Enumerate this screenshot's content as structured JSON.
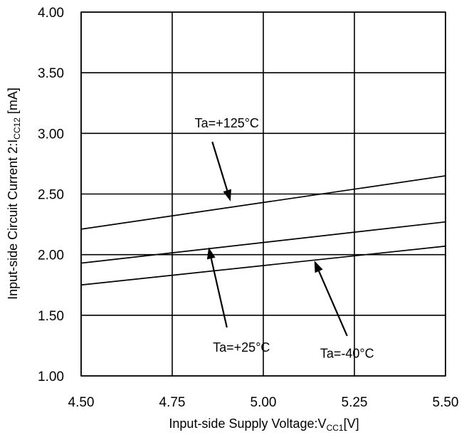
{
  "chart_data": {
    "type": "line",
    "title": "",
    "xlabel": {
      "main": "Input-side Supply Voltage:V",
      "sub": "CC1",
      "unit": "[V]"
    },
    "ylabel": {
      "main": "Input-side Circuit Current 2:I",
      "sub": "CC12",
      "unit": " [mA]"
    },
    "xlim": [
      4.5,
      5.5
    ],
    "ylim": [
      1.0,
      4.0
    ],
    "x_ticks": [
      4.5,
      4.75,
      5.0,
      5.25,
      5.5
    ],
    "x_tick_labels": [
      "4.50",
      "4.75",
      "5.00",
      "5.25",
      "5.50"
    ],
    "y_ticks": [
      1.0,
      1.5,
      2.0,
      2.5,
      3.0,
      3.5,
      4.0
    ],
    "y_tick_labels": [
      "1.00",
      "1.50",
      "2.00",
      "2.50",
      "3.00",
      "3.50",
      "4.00"
    ],
    "grid": true,
    "series": [
      {
        "x": [
          4.5,
          5.5
        ],
        "values": [
          2.21,
          2.65
        ]
      },
      {
        "x": [
          4.5,
          5.5
        ],
        "values": [
          1.93,
          2.27
        ]
      },
      {
        "x": [
          4.5,
          5.5
        ],
        "values": [
          1.75,
          2.07
        ]
      }
    ],
    "annotations": [
      {
        "text": "Ta=+125°C",
        "text_x": 4.9,
        "text_y": 3.05,
        "arrow_from": [
          4.86,
          2.93
        ],
        "arrow_to": [
          4.91,
          2.44
        ]
      },
      {
        "text": "Ta=+25°C",
        "text_x": 4.94,
        "text_y": 1.2,
        "arrow_from": [
          4.9,
          1.4
        ],
        "arrow_to": [
          4.85,
          2.06
        ]
      },
      {
        "text": "Ta=-40°C",
        "text_x": 5.23,
        "text_y": 1.15,
        "arrow_from": [
          5.23,
          1.33
        ],
        "arrow_to": [
          5.14,
          1.95
        ]
      }
    ]
  }
}
